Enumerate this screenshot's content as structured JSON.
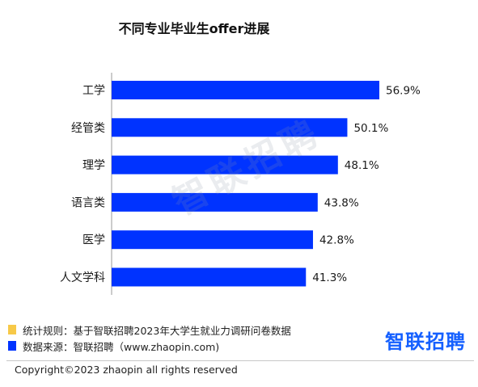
{
  "chart_data": {
    "type": "bar",
    "orientation": "horizontal",
    "title": "不同专业毕业生offer进展",
    "categories": [
      "工学",
      "经管类",
      "理学",
      "语言类",
      "医学",
      "人文学科"
    ],
    "values": [
      56.9,
      50.1,
      48.1,
      43.8,
      42.8,
      41.3
    ],
    "value_labels": [
      "56.9%",
      "50.1%",
      "48.1%",
      "43.8%",
      "42.8%",
      "41.3%"
    ],
    "xlabel": "",
    "ylabel": "",
    "xlim": [
      0,
      56.9
    ],
    "grid": false,
    "legend": "none",
    "bar_color": "#0033ff"
  },
  "watermark": "智联招聘",
  "notes": [
    {
      "color": "#f7c948",
      "label": "统计规则：",
      "text": "基于智联招聘2023年大学生就业力调研问卷数据"
    },
    {
      "color": "#0033ff",
      "label": "数据来源：",
      "text": "智联招聘（www.zhaopin.com)"
    }
  ],
  "logo": "智联招聘",
  "copyright": "Copyright©2023 zhaopin all rights reserved"
}
